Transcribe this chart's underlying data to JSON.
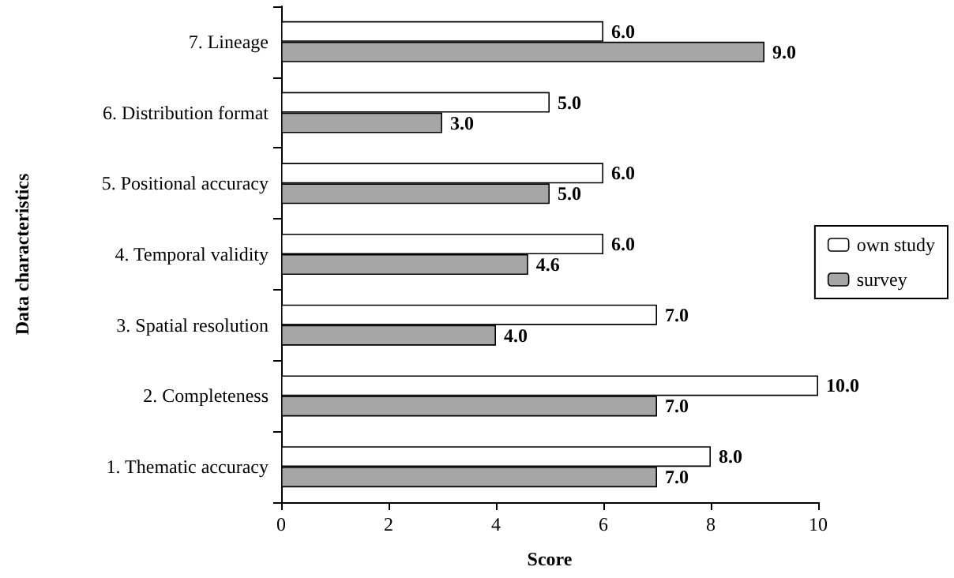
{
  "chart_data": {
    "type": "bar",
    "orientation": "horizontal",
    "xlabel": "Score",
    "ylabel": "Data characteristics",
    "categories": [
      "7. Lineage",
      "6. Distribution format",
      "5. Positional accuracy",
      "4. Temporal validity",
      "3. Spatial resolution",
      "2. Completeness",
      "1. Thematic accuracy"
    ],
    "series": [
      {
        "name": "own study",
        "color": "#ffffff",
        "values": [
          6,
          5,
          6,
          6,
          7,
          10,
          8
        ],
        "value_labels": [
          "6.0",
          "5.0",
          "6.0",
          "6.0",
          "7.0",
          "10.0",
          "8.0"
        ]
      },
      {
        "name": "survey",
        "color": "#a6a6a6",
        "values": [
          9,
          3,
          5,
          4.6,
          4,
          7,
          7
        ],
        "value_labels": [
          "9.0",
          "3.0",
          "5.0",
          "4.6",
          "4.0",
          "7.0",
          "7.0"
        ]
      }
    ],
    "xlim": [
      0,
      10
    ],
    "xticks": [
      0,
      2,
      4,
      6,
      8,
      10
    ],
    "grid": false,
    "legend": "right"
  }
}
